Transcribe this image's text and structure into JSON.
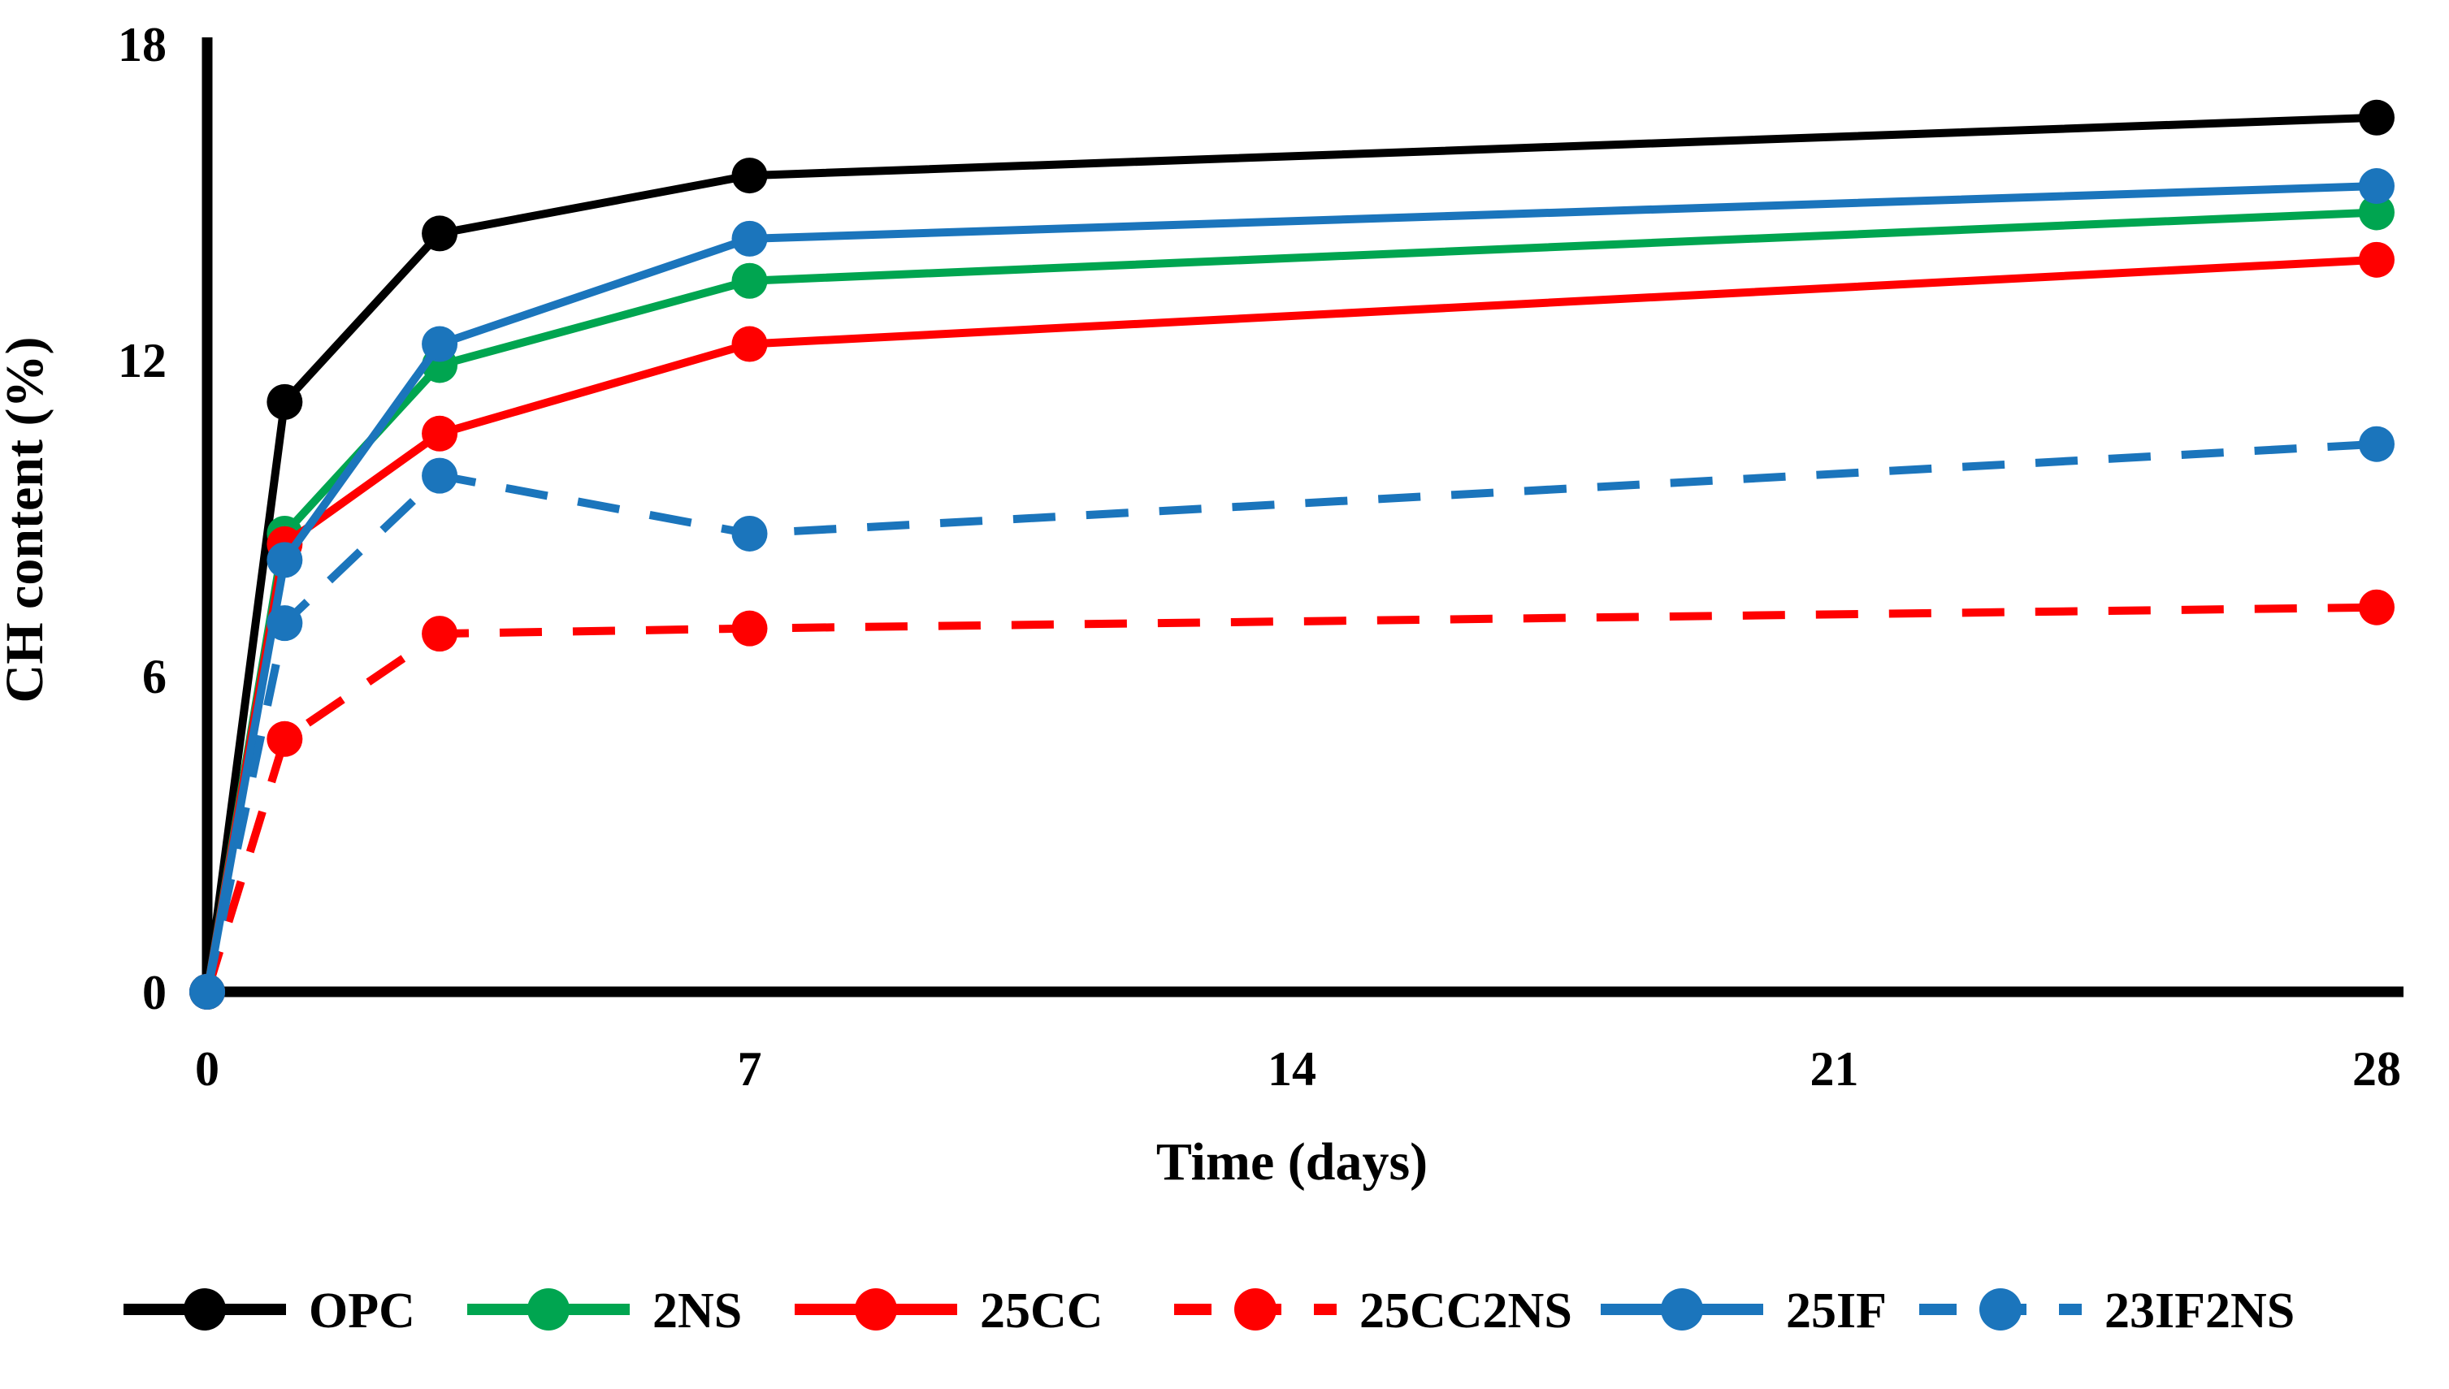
{
  "figure": {
    "background": "#ffffff",
    "description": "Line chart of calcium hydroxide (CH) content versus curing time for six cement mixes"
  },
  "chart_data": {
    "type": "line",
    "title": "",
    "xlabel": "Time (days)",
    "ylabel": "CH content (%)",
    "x": [
      0,
      1,
      3,
      7,
      28
    ],
    "xlim": [
      0,
      28
    ],
    "ylim": [
      0,
      18
    ],
    "x_ticks": [
      0,
      7,
      14,
      21,
      28
    ],
    "y_ticks": [
      0,
      6,
      12,
      18
    ],
    "grid": false,
    "marker": "circle",
    "legend_position": "bottom",
    "axis_color": "#000000",
    "series": [
      {
        "name": "OPC",
        "color": "#000000",
        "style": "solid",
        "values": [
          0,
          11.2,
          14.4,
          15.5,
          16.6
        ]
      },
      {
        "name": "2NS",
        "color": "#00A550",
        "style": "solid",
        "values": [
          0,
          8.7,
          11.9,
          13.5,
          14.8
        ]
      },
      {
        "name": "25CC",
        "color": "#FF0000",
        "style": "solid",
        "values": [
          0,
          8.5,
          10.6,
          12.3,
          13.9
        ]
      },
      {
        "name": "25CC2NS",
        "color": "#FF0000",
        "style": "dashed",
        "values": [
          0,
          4.8,
          6.8,
          6.9,
          7.3
        ]
      },
      {
        "name": "25IF",
        "color": "#1B75BC",
        "style": "solid",
        "values": [
          0,
          8.2,
          12.3,
          14.3,
          15.3
        ]
      },
      {
        "name": "23IF2NS",
        "color": "#1B75BC",
        "style": "dashed",
        "values": [
          0,
          7.0,
          9.8,
          8.7,
          10.4
        ]
      }
    ]
  }
}
